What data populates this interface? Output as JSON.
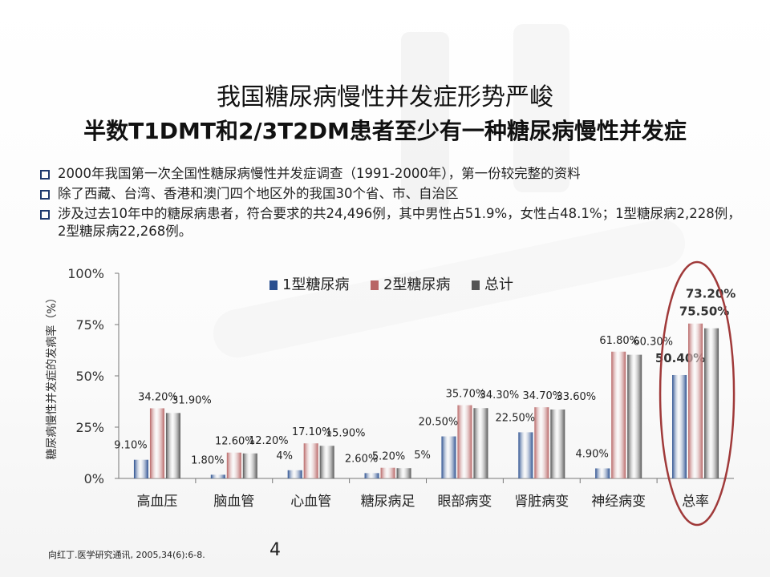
{
  "title": "我国糖尿病慢性并发症形势严峻",
  "subtitle": "半数T1DMT和2/3T2DM患者至少有一种糖尿病慢性并发症",
  "bullets": [
    "2000年我国第一次全国性糖尿病慢性并发症调查（1991-2000年），第一份较完整的资料",
    "除了西藏、台湾、香港和澳门四个地区外的我国30个省、市、自治区",
    "涉及过去10年中的糖尿病患者，符合要求的共24,496例，其中男性占51.9%，女性占48.1%；1型糖尿病2,228例，2型糖尿病22,268例。"
  ],
  "footer": "向红丁.医学研究通讯, 2005,34(6):6-8.",
  "page_number": "4",
  "chart_data": {
    "type": "bar",
    "ylabel": "糖尿病慢性并发症的发病率（%）",
    "ylim": [
      0,
      100
    ],
    "yticks": [
      "0%",
      "25%",
      "50%",
      "75%",
      "100%"
    ],
    "categories": [
      "高血压",
      "脑血管",
      "心血管",
      "糖尿病足",
      "眼部病变",
      "肾脏病变",
      "神经病变",
      "总率"
    ],
    "legend_position": "top",
    "series": [
      {
        "name": "1型糖尿病",
        "color": "#2a4f8f",
        "values": [
          9.1,
          1.8,
          4,
          2.6,
          20.5,
          22.5,
          4.9,
          50.4
        ],
        "labels": [
          "9.10%",
          "1.80%",
          "4%",
          "2.60%",
          "20.50%",
          "22.50%",
          "4.90%",
          "50.40%"
        ]
      },
      {
        "name": "2型糖尿病",
        "color": "#b86565",
        "values": [
          34.2,
          12.6,
          17.1,
          5.2,
          35.7,
          34.7,
          61.8,
          75.5
        ],
        "labels": [
          "34.20%",
          "12.60%",
          "17.10%",
          "5.20%",
          "35.70%",
          "34.70%",
          "61.80%",
          "75.50%"
        ]
      },
      {
        "name": "总计",
        "color": "#555555",
        "values": [
          31.9,
          12.2,
          15.9,
          5,
          34.3,
          33.6,
          60.3,
          73.2
        ],
        "labels": [
          "31.90%",
          "12.20%",
          "15.90%",
          "5%",
          "34.30%",
          "33.60%",
          "60.30%",
          "73.20%"
        ]
      }
    ],
    "highlight_category": "总率",
    "highlight_color": "#a03a3a"
  }
}
